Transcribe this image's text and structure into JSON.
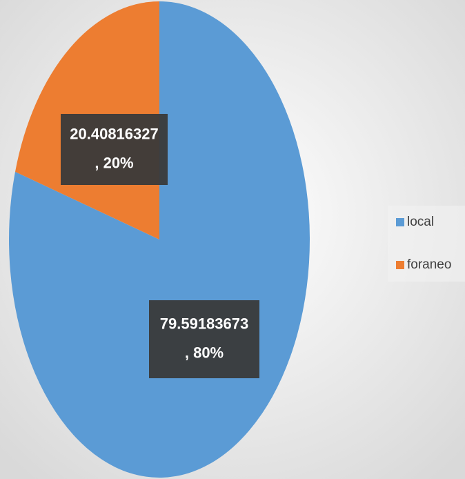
{
  "chart_data": {
    "type": "pie",
    "categories": [
      "local",
      "foraneo"
    ],
    "values": [
      79.59183673,
      20.40816327
    ],
    "value_labels": [
      [
        "79.59183673",
        ", 80%"
      ],
      [
        "20.40816327",
        ", 20%"
      ]
    ],
    "colors": [
      "#5b9bd5",
      "#ed7d31"
    ],
    "legend": "right"
  }
}
